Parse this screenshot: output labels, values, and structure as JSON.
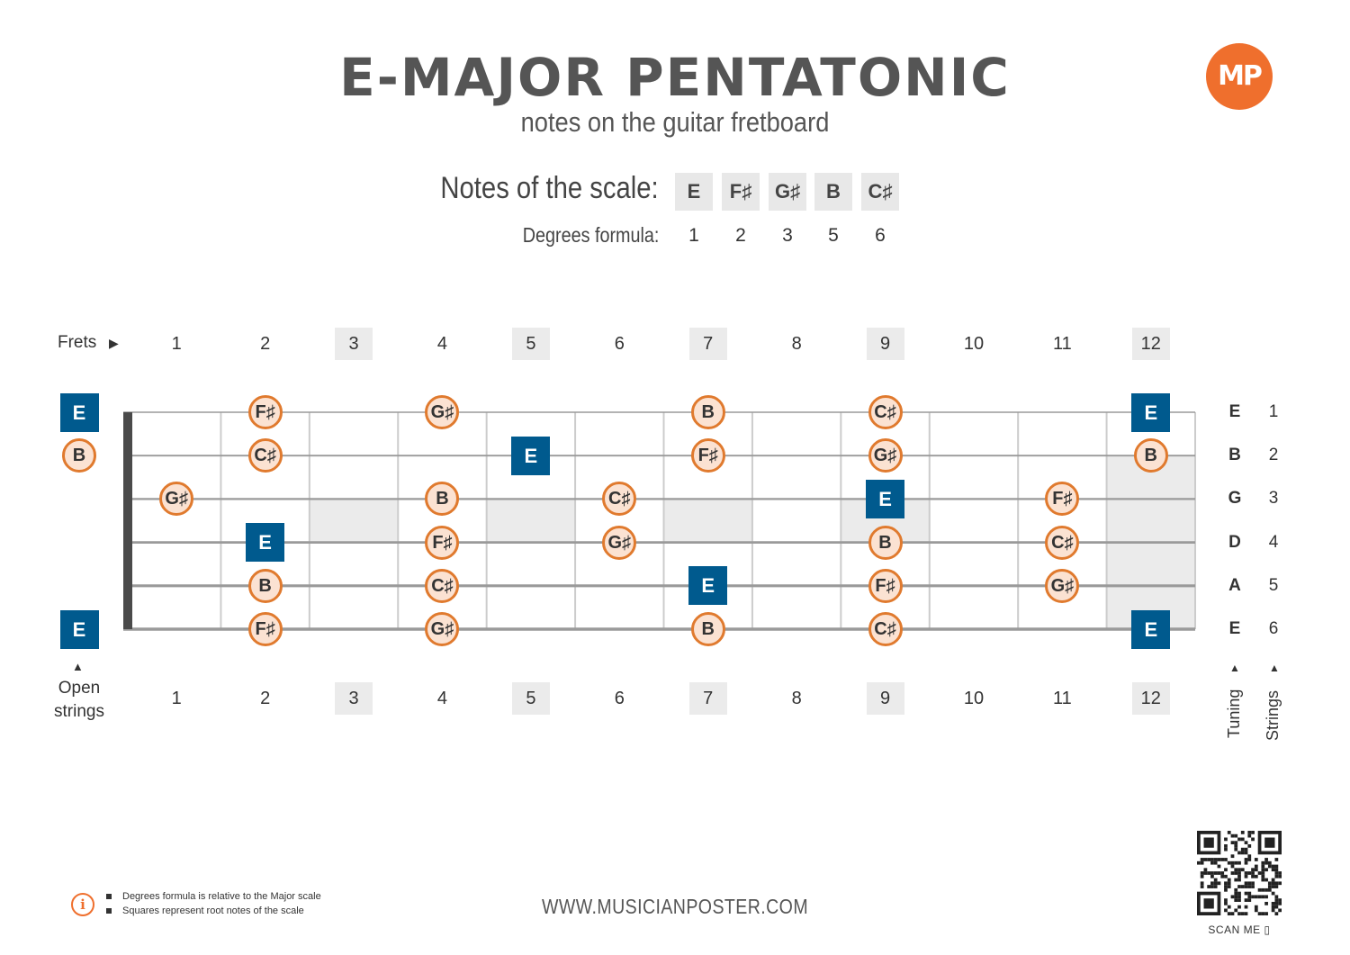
{
  "header": {
    "title": "E-MAJOR PENTATONIC",
    "subtitle": "notes on the guitar fretboard",
    "logo_text": "MP"
  },
  "scale": {
    "label": "Notes of the scale:",
    "notes": [
      "E",
      "F♯",
      "G♯",
      "B",
      "C♯"
    ],
    "degrees_label": "Degrees formula:",
    "degrees": [
      "1",
      "2",
      "3",
      "5",
      "6"
    ]
  },
  "fretboard": {
    "frets_label": "Frets",
    "frets_arrow": "▶",
    "fret_numbers": [
      "1",
      "2",
      "3",
      "4",
      "5",
      "6",
      "7",
      "8",
      "9",
      "10",
      "11",
      "12"
    ],
    "marked_frets": [
      3,
      5,
      7,
      9,
      12
    ],
    "inlay_frets": [
      3,
      5,
      7,
      9
    ],
    "double_inlay_fret": 12,
    "open_strings_label_1": "Open",
    "open_strings_label_2": "strings",
    "open_arrow": "▲",
    "tuning": [
      "E",
      "B",
      "G",
      "D",
      "A",
      "E"
    ],
    "string_numbers": [
      "1",
      "2",
      "3",
      "4",
      "5",
      "6"
    ],
    "tuning_label": "Tuning",
    "strings_label": "Strings",
    "up_arrow": "▲",
    "colors": {
      "root_fill": "#005a8e",
      "note_fill": "#fbe2d2",
      "note_border": "#e07a2e",
      "string_line": "#9a9a9a",
      "fret_line": "#cccccc",
      "nut": "#4a4a4a",
      "inlay": "#ebebeb"
    },
    "notes": [
      {
        "string": 1,
        "fret": 0,
        "note": "E",
        "root": true
      },
      {
        "string": 1,
        "fret": 2,
        "note": "F♯",
        "root": false
      },
      {
        "string": 1,
        "fret": 4,
        "note": "G♯",
        "root": false
      },
      {
        "string": 1,
        "fret": 7,
        "note": "B",
        "root": false
      },
      {
        "string": 1,
        "fret": 9,
        "note": "C♯",
        "root": false
      },
      {
        "string": 1,
        "fret": 12,
        "note": "E",
        "root": true
      },
      {
        "string": 2,
        "fret": 0,
        "note": "B",
        "root": false
      },
      {
        "string": 2,
        "fret": 2,
        "note": "C♯",
        "root": false
      },
      {
        "string": 2,
        "fret": 5,
        "note": "E",
        "root": true
      },
      {
        "string": 2,
        "fret": 7,
        "note": "F♯",
        "root": false
      },
      {
        "string": 2,
        "fret": 9,
        "note": "G♯",
        "root": false
      },
      {
        "string": 2,
        "fret": 12,
        "note": "B",
        "root": false
      },
      {
        "string": 3,
        "fret": 1,
        "note": "G♯",
        "root": false
      },
      {
        "string": 3,
        "fret": 4,
        "note": "B",
        "root": false
      },
      {
        "string": 3,
        "fret": 6,
        "note": "C♯",
        "root": false
      },
      {
        "string": 3,
        "fret": 9,
        "note": "E",
        "root": true
      },
      {
        "string": 3,
        "fret": 11,
        "note": "F♯",
        "root": false
      },
      {
        "string": 4,
        "fret": 2,
        "note": "E",
        "root": true
      },
      {
        "string": 4,
        "fret": 4,
        "note": "F♯",
        "root": false
      },
      {
        "string": 4,
        "fret": 6,
        "note": "G♯",
        "root": false
      },
      {
        "string": 4,
        "fret": 9,
        "note": "B",
        "root": false
      },
      {
        "string": 4,
        "fret": 11,
        "note": "C♯",
        "root": false
      },
      {
        "string": 5,
        "fret": 2,
        "note": "B",
        "root": false
      },
      {
        "string": 5,
        "fret": 4,
        "note": "C♯",
        "root": false
      },
      {
        "string": 5,
        "fret": 7,
        "note": "E",
        "root": true
      },
      {
        "string": 5,
        "fret": 9,
        "note": "F♯",
        "root": false
      },
      {
        "string": 5,
        "fret": 11,
        "note": "G♯",
        "root": false
      },
      {
        "string": 6,
        "fret": 0,
        "note": "E",
        "root": true
      },
      {
        "string": 6,
        "fret": 2,
        "note": "F♯",
        "root": false
      },
      {
        "string": 6,
        "fret": 4,
        "note": "G♯",
        "root": false
      },
      {
        "string": 6,
        "fret": 7,
        "note": "B",
        "root": false
      },
      {
        "string": 6,
        "fret": 9,
        "note": "C♯",
        "root": false
      },
      {
        "string": 6,
        "fret": 12,
        "note": "E",
        "root": true
      }
    ]
  },
  "footer": {
    "info_icon": "i",
    "notes": [
      "Degrees formula is relative to the Major scale",
      "Squares represent root notes of the scale"
    ],
    "url": "WWW.MUSICIANPOSTER.COM",
    "scan_me": "SCAN ME"
  }
}
